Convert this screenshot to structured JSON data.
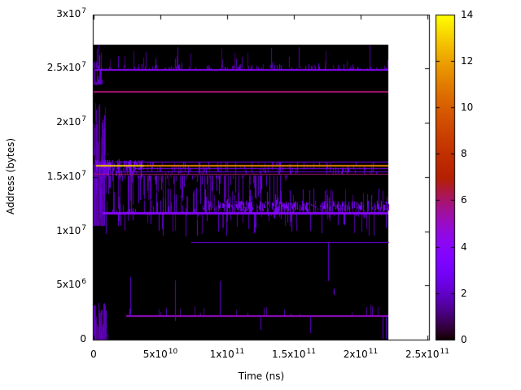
{
  "figure": {
    "background_color": "#ffffff",
    "plot_background_color": "#000000",
    "axis_color": "#000000",
    "text_color": "#000000",
    "palette_name": "gnuplot-black-violet-red-yellow",
    "palette_key_colors": {
      "0": "#000000",
      "4": "#8806f9",
      "6": "#a7146f",
      "11": "#e27c00",
      "14": "#ffff00"
    }
  },
  "chart_data": {
    "type": "heatmap",
    "title": "",
    "xlabel": "Time (ns)",
    "ylabel": "Address (bytes)",
    "xlim": [
      0,
      250000000000.0
    ],
    "ylim": [
      0,
      30000000.0
    ],
    "grid": false,
    "legend_position": "none",
    "colorbar": {
      "min": 0,
      "max": 14,
      "ticks": [
        {
          "value": 0,
          "label": "0"
        },
        {
          "value": 2,
          "label": "2"
        },
        {
          "value": 4,
          "label": "4"
        },
        {
          "value": 6,
          "label": "6"
        },
        {
          "value": 8,
          "label": "8"
        },
        {
          "value": 10,
          "label": "10"
        },
        {
          "value": 12,
          "label": "12"
        },
        {
          "value": 14,
          "label": "14"
        }
      ]
    },
    "xticks": [
      {
        "value": 0,
        "mantissa": "0",
        "exp": ""
      },
      {
        "value": 50000000000.0,
        "mantissa": "5x10",
        "exp": "10"
      },
      {
        "value": 100000000000.0,
        "mantissa": "1x10",
        "exp": "11"
      },
      {
        "value": 150000000000.0,
        "mantissa": "1.5x10",
        "exp": "11"
      },
      {
        "value": 200000000000.0,
        "mantissa": "2x10",
        "exp": "11"
      },
      {
        "value": 250000000000.0,
        "mantissa": "2.5x10",
        "exp": "11"
      }
    ],
    "yticks": [
      {
        "value": 0,
        "mantissa": "0",
        "exp": ""
      },
      {
        "value": 5000000.0,
        "mantissa": "5x10",
        "exp": "6"
      },
      {
        "value": 10000000.0,
        "mantissa": "1x10",
        "exp": "7"
      },
      {
        "value": 15000000.0,
        "mantissa": "1.5x10",
        "exp": "7"
      },
      {
        "value": 20000000.0,
        "mantissa": "2x10",
        "exp": "7"
      },
      {
        "value": 25000000.0,
        "mantissa": "2.5x10",
        "exp": "7"
      },
      {
        "value": 30000000.0,
        "mantissa": "3x10",
        "exp": "7"
      }
    ],
    "data_extent": {
      "t_min": 0,
      "t_max": 221000000000.0,
      "addr_min": 0,
      "addr_max": 27200000.0
    },
    "lines": [
      {
        "name": "line-addr-2.49e7",
        "addr": 24900000.0,
        "t0": 1500000000.0,
        "t1": 221000000000.0,
        "value": 4,
        "width": 2
      },
      {
        "name": "line-addr-2.283e7",
        "addr": 22830000.0,
        "t0": 0,
        "t1": 221000000000.0,
        "value": 6,
        "width": 2
      },
      {
        "name": "line-addr-1.638e7",
        "addr": 16380000.0,
        "t0": 16000000000.0,
        "t1": 221000000000.0,
        "value": 3,
        "width": 1
      },
      {
        "name": "line-addr-1.607e7",
        "addr": 16070000.0,
        "t0": 2000000000.0,
        "t1": 221000000000.0,
        "value": 11,
        "width": 2
      },
      {
        "name": "line-addr-1.607e7-hot-head",
        "addr": 16070000.0,
        "t0": 2000000000.0,
        "t1": 38000000000.0,
        "value": 12.7,
        "width": 2
      },
      {
        "name": "line-addr-1.578e7",
        "addr": 15780000.0,
        "t0": 32000000000.0,
        "t1": 221000000000.0,
        "value": 4,
        "width": 1
      },
      {
        "name": "line-addr-1.553e7",
        "addr": 15530000.0,
        "t0": 16000000000.0,
        "t1": 221000000000.0,
        "value": 3,
        "width": 1
      },
      {
        "name": "line-addr-1.525e7",
        "addr": 15250000.0,
        "t0": 0,
        "t1": 221000000000.0,
        "value": 6,
        "width": 1
      },
      {
        "name": "line-addr-1.168e7",
        "addr": 11680000.0,
        "t0": 7000000000.0,
        "t1": 221000000000.0,
        "value": 4,
        "width": 3
      },
      {
        "name": "line-addr-9.0e6",
        "addr": 9000000.0,
        "t0": 73000000000.0,
        "t1": 221000000000.0,
        "value": 2.8,
        "width": 1
      },
      {
        "name": "line-addr-2.2e6",
        "addr": 2200000.0,
        "t0": 24500000000.0,
        "t1": 221000000000.0,
        "value": 5,
        "width": 2
      }
    ],
    "noise_regions": [
      {
        "name": "top-band-spikes",
        "t0": 1000000000.0,
        "t1": 221000000000.0,
        "a0": 25000000.0,
        "a1": 27000000.0,
        "count": 40,
        "vmin": 0.8,
        "vmax": 2.0
      },
      {
        "name": "violet-line-fuzz",
        "t0": 1000000000.0,
        "t1": 221000000000.0,
        "a0": 24900000.0,
        "a1": 25450000.0,
        "count": 130,
        "vmin": 1.2,
        "vmax": 2.6
      },
      {
        "name": "left-column-mid",
        "t0": 0,
        "t1": 8000000000.0,
        "a0": 10500000.0,
        "a1": 21000000.0,
        "count": 70,
        "vmin": 1.0,
        "vmax": 2.4
      },
      {
        "name": "left-column-bottom",
        "t0": 0,
        "t1": 9000000000.0,
        "a0": 0,
        "a1": 3400000.0,
        "count": 55,
        "vmin": 1.0,
        "vmax": 2.4
      },
      {
        "name": "left-column-top",
        "t0": 0,
        "t1": 6000000000.0,
        "a0": 23500000.0,
        "a1": 27000000.0,
        "count": 20,
        "vmin": 1.0,
        "vmax": 2.2
      },
      {
        "name": "mid-band-block",
        "t0": 0,
        "t1": 37000000000.0,
        "a0": 15000000.0,
        "a1": 16600000.0,
        "count": 150,
        "vmin": 1.5,
        "vmax": 3.8,
        "mode": "band"
      },
      {
        "name": "mid-band-dashes",
        "t0": 37000000000.0,
        "t1": 221000000000.0,
        "a0": 15200000.0,
        "a1": 16450000.0,
        "count": 120,
        "vmin": 1.2,
        "vmax": 2.6,
        "mode": "band"
      },
      {
        "name": "mid-rain",
        "t0": 0,
        "t1": 145000000000.0,
        "a0": 15100000.0,
        "a1": 12000000.0,
        "count": 150,
        "vmin": 1.0,
        "vmax": 2.6
      },
      {
        "name": "bright-line-fuzz-up",
        "t0": 3000000000.0,
        "t1": 221000000000.0,
        "a0": 11700000.0,
        "a1": 14000000.0,
        "count": 160,
        "vmin": 1.2,
        "vmax": 3.0
      },
      {
        "name": "bright-line-fuzz-down",
        "t0": 3000000000.0,
        "t1": 221000000000.0,
        "a0": 11600000.0,
        "a1": 9400000.0,
        "count": 90,
        "vmin": 1.2,
        "vmax": 2.8
      },
      {
        "name": "right-barcode",
        "t0": 80000000000.0,
        "t1": 221000000000.0,
        "a0": 11800000.0,
        "a1": 12800000.0,
        "count": 260,
        "vmin": 2.2,
        "vmax": 4.2,
        "mode": "band"
      },
      {
        "name": "bottom-left-cluster",
        "t0": 1000000000.0,
        "t1": 10500000000.0,
        "a0": 0,
        "a1": 3100000.0,
        "count": 40,
        "vmin": 1.0,
        "vmax": 2.4
      },
      {
        "name": "upper-mid-sparse",
        "t0": 0,
        "t1": 12000000000.0,
        "a0": 17000000.0,
        "a1": 22000000.0,
        "count": 10,
        "vmin": 0.8,
        "vmax": 1.8
      },
      {
        "name": "bottom-line-fuzz",
        "t0": 24500000000.0,
        "t1": 221000000000.0,
        "a0": 2200000.0,
        "a1": 3200000.0,
        "count": 25,
        "vmin": 1.0,
        "vmax": 2.0
      }
    ],
    "spikes": [
      {
        "t": 27500000000.0,
        "a0": 5800000.0,
        "a1": 2200000.0,
        "v": 2.2
      },
      {
        "t": 61000000000.0,
        "a0": 5500000.0,
        "a1": 1700000.0,
        "v": 2.2
      },
      {
        "t": 94500000000.0,
        "a0": 5400000.0,
        "a1": 2200000.0,
        "v": 2.2
      },
      {
        "t": 175600000000.0,
        "a0": 9000000.0,
        "a1": 5400000.0,
        "v": 2.4
      },
      {
        "t": 180000000000.0,
        "a0": 4750000.0,
        "a1": 4150000.0,
        "v": 3.5
      },
      {
        "t": 162000000000.0,
        "a0": 2200000.0,
        "a1": 600000.0,
        "v": 2.0
      },
      {
        "t": 125000000000.0,
        "a0": 2200000.0,
        "a1": 900000.0,
        "v": 2.0
      },
      {
        "t": 216500000000.0,
        "a0": 2200000.0,
        "a1": 100000.0,
        "v": 2.4
      },
      {
        "t": 219000000000.0,
        "a0": 2200000.0,
        "a1": 100000.0,
        "v": 2.4
      },
      {
        "t": 3900000000.0,
        "a0": 24900000.0,
        "a1": 27200000.0,
        "v": 1.8
      },
      {
        "t": 63000000000.0,
        "a0": 24900000.0,
        "a1": 27000000.0,
        "v": 1.8
      },
      {
        "t": 133000000000.0,
        "a0": 24900000.0,
        "a1": 26900000.0,
        "v": 1.8
      },
      {
        "t": 207000000000.0,
        "a0": 24900000.0,
        "a1": 27100000.0,
        "v": 1.8
      }
    ]
  }
}
